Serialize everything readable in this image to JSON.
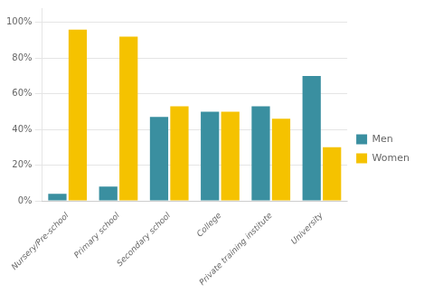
{
  "chart_data": {
    "type": "bar",
    "categories": [
      "Nursery/Pre-school",
      "Primary school",
      "Secondary school",
      "College",
      "Private training institute",
      "University"
    ],
    "series": [
      {
        "name": "Men",
        "color": "#3a8fa0",
        "values": [
          4,
          8,
          47,
          50,
          53,
          70
        ]
      },
      {
        "name": "Women",
        "color": "#f5c200",
        "values": [
          96,
          92,
          53,
          50,
          46,
          30
        ]
      }
    ],
    "ylim": [
      0,
      108
    ],
    "yticks": [
      {
        "value": 0,
        "label": "0%"
      },
      {
        "value": 20,
        "label": "20%"
      },
      {
        "value": 40,
        "label": "40%"
      },
      {
        "value": 60,
        "label": "60%"
      },
      {
        "value": 80,
        "label": "80%"
      },
      {
        "value": 100,
        "label": "100%"
      }
    ],
    "grid": true,
    "legend": "right"
  }
}
